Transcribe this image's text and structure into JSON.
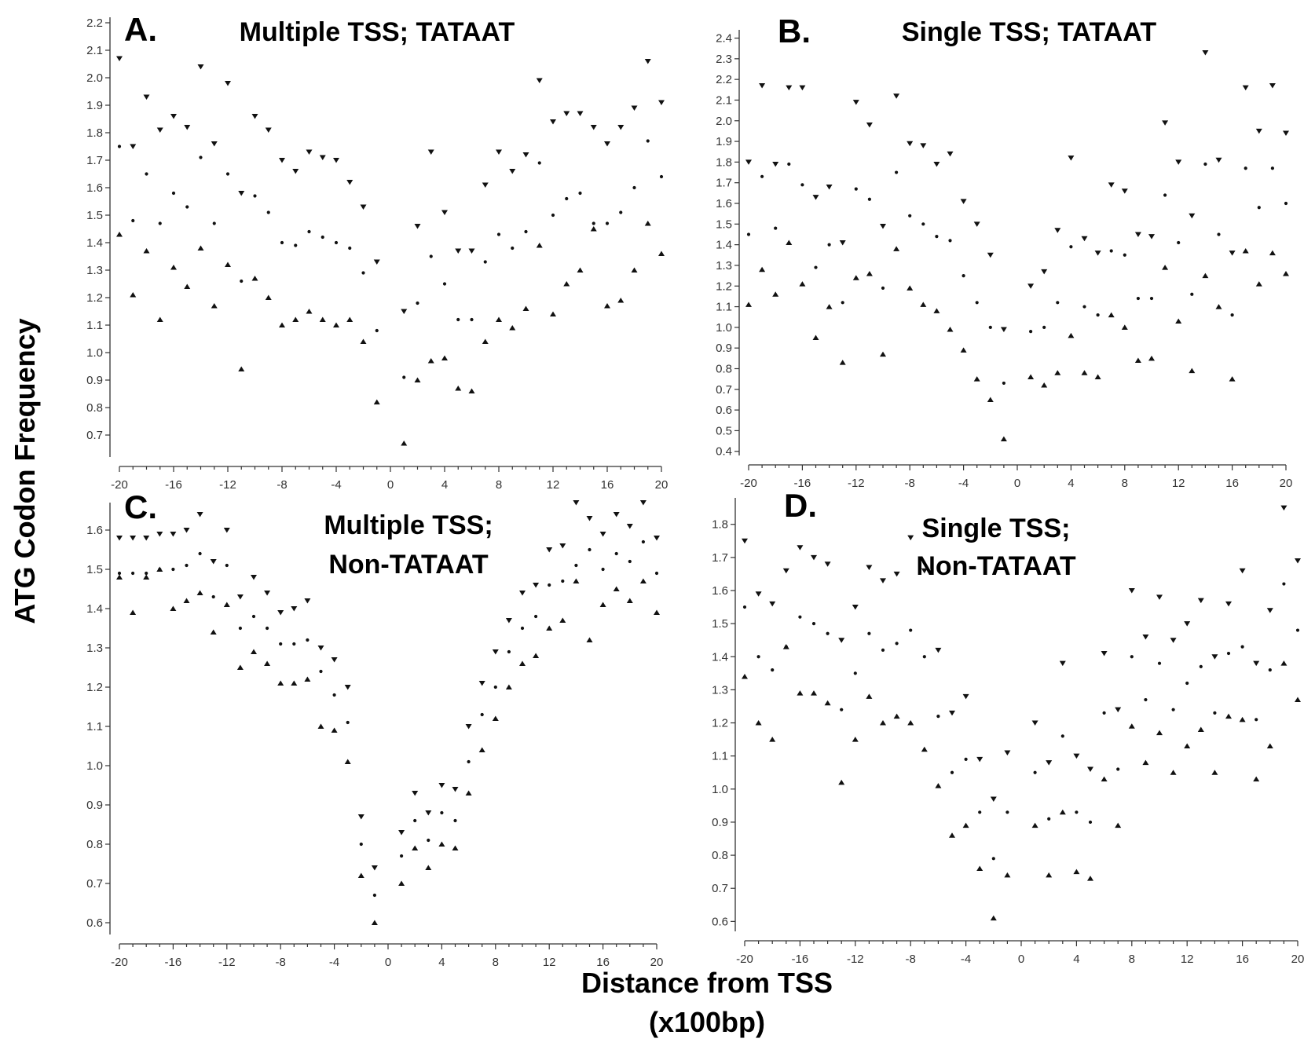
{
  "figure": {
    "ylabel": "ATG Codon Frequency",
    "xlabel_line1": "Distance from TSS",
    "xlabel_line2": "(x100bp)"
  },
  "chart_data": [
    {
      "panel": "A.",
      "title_lines": [
        "Multiple TSS; TATAAT"
      ],
      "type": "scatter",
      "xlim": [
        -20,
        20
      ],
      "ylim": [
        0.62,
        2.22
      ],
      "xticks": [
        -20,
        -16,
        -12,
        -8,
        -4,
        0,
        4,
        8,
        12,
        16,
        20
      ],
      "yticks": [
        0.7,
        0.8,
        0.9,
        1.0,
        1.1,
        1.2,
        1.3,
        1.4,
        1.5,
        1.6,
        1.7,
        1.8,
        1.9,
        2.0,
        2.1,
        2.2
      ],
      "xtick_labels": [
        "-20",
        "-16",
        "-12",
        "-8",
        "-4",
        "0",
        "4",
        "8",
        "12",
        "16",
        "20"
      ],
      "ytick_labels": [
        "0.7",
        "0.8",
        "0.9",
        "1.0",
        "1.1",
        "1.2",
        "1.3",
        "1.4",
        "1.5",
        "1.6",
        "1.7",
        "1.8",
        "1.9",
        "2.0",
        "2.1",
        "2.2"
      ],
      "x": [
        -20,
        -19,
        -18,
        -17,
        -16,
        -15,
        -14,
        -13,
        -12,
        -11,
        -10,
        -9,
        -8,
        -7,
        -6,
        -5,
        -4,
        -3,
        -2,
        -1,
        1,
        2,
        3,
        4,
        5,
        6,
        7,
        8,
        9,
        10,
        11,
        12,
        13,
        14,
        15,
        16,
        17,
        18,
        19,
        20
      ],
      "series": [
        {
          "marker": "down",
          "values": [
            2.07,
            1.75,
            1.93,
            1.81,
            1.86,
            1.82,
            2.04,
            1.76,
            1.98,
            1.58,
            1.86,
            1.81,
            1.7,
            1.66,
            1.73,
            1.71,
            1.7,
            1.62,
            1.53,
            1.33,
            1.15,
            1.46,
            1.73,
            1.51,
            1.37,
            1.37,
            1.61,
            1.73,
            1.66,
            1.72,
            1.99,
            1.84,
            1.87,
            1.87,
            1.82,
            1.76,
            1.82,
            1.89,
            2.06,
            1.91
          ]
        },
        {
          "marker": "dot",
          "values": [
            1.75,
            1.48,
            1.65,
            1.47,
            1.58,
            1.53,
            1.71,
            1.47,
            1.65,
            1.26,
            1.57,
            1.51,
            1.4,
            1.39,
            1.44,
            1.42,
            1.4,
            1.38,
            1.29,
            1.08,
            0.91,
            1.18,
            1.35,
            1.25,
            1.12,
            1.12,
            1.33,
            1.43,
            1.38,
            1.44,
            1.69,
            1.5,
            1.56,
            1.58,
            1.47,
            1.47,
            1.51,
            1.6,
            1.77,
            1.64
          ]
        },
        {
          "marker": "up",
          "values": [
            1.43,
            1.21,
            1.37,
            1.12,
            1.31,
            1.24,
            1.38,
            1.17,
            1.32,
            0.94,
            1.27,
            1.2,
            1.1,
            1.12,
            1.15,
            1.12,
            1.1,
            1.12,
            1.04,
            0.82,
            0.67,
            0.9,
            0.97,
            0.98,
            0.87,
            0.86,
            1.04,
            1.12,
            1.09,
            1.16,
            1.39,
            1.14,
            1.25,
            1.3,
            1.45,
            1.17,
            1.19,
            1.3,
            1.47,
            1.36
          ]
        }
      ]
    },
    {
      "panel": "B.",
      "title_lines": [
        "Single TSS; TATAAT"
      ],
      "type": "scatter",
      "xlim": [
        -20,
        20
      ],
      "ylim": [
        0.38,
        2.44
      ],
      "xticks": [
        -20,
        -16,
        -12,
        -8,
        -4,
        0,
        4,
        8,
        12,
        16,
        20
      ],
      "yticks": [
        0.4,
        0.5,
        0.6,
        0.7,
        0.8,
        0.9,
        1.0,
        1.1,
        1.2,
        1.3,
        1.4,
        1.5,
        1.6,
        1.7,
        1.8,
        1.9,
        2.0,
        2.1,
        2.2,
        2.3,
        2.4
      ],
      "xtick_labels": [
        "-20",
        "-16",
        "-12",
        "-8",
        "-4",
        "0",
        "4",
        "8",
        "12",
        "16",
        "20"
      ],
      "ytick_labels": [
        "0.4",
        "0.5",
        "0.6",
        "0.7",
        "0.8",
        "0.9",
        "1.0",
        "1.1",
        "1.2",
        "1.3",
        "1.4",
        "1.5",
        "1.6",
        "1.7",
        "1.8",
        "1.9",
        "2.0",
        "2.1",
        "2.2",
        "2.3",
        "2.4"
      ],
      "x": [
        -20,
        -19,
        -18,
        -17,
        -16,
        -15,
        -14,
        -13,
        -12,
        -11,
        -10,
        -9,
        -8,
        -7,
        -6,
        -5,
        -4,
        -3,
        -2,
        -1,
        1,
        2,
        3,
        4,
        5,
        6,
        7,
        8,
        9,
        10,
        11,
        12,
        13,
        14,
        15,
        16,
        17,
        18,
        19,
        20
      ],
      "series": [
        {
          "marker": "down",
          "values": [
            1.8,
            2.17,
            1.79,
            2.16,
            2.16,
            1.63,
            1.68,
            1.41,
            2.09,
            1.98,
            1.49,
            2.12,
            1.89,
            1.88,
            1.79,
            1.84,
            1.61,
            1.5,
            1.35,
            0.99,
            1.2,
            1.27,
            1.47,
            1.82,
            1.43,
            1.36,
            1.69,
            1.66,
            1.45,
            1.44,
            1.99,
            1.8,
            1.54,
            2.33,
            1.81,
            1.36,
            2.16,
            1.95,
            2.17,
            1.94
          ]
        },
        {
          "marker": "dot",
          "values": [
            1.45,
            1.73,
            1.48,
            1.79,
            1.69,
            1.29,
            1.4,
            1.12,
            1.67,
            1.62,
            1.19,
            1.75,
            1.54,
            1.5,
            1.44,
            1.42,
            1.25,
            1.12,
            1.0,
            0.73,
            0.98,
            1.0,
            1.12,
            1.39,
            1.1,
            1.06,
            1.37,
            1.35,
            1.14,
            1.14,
            1.64,
            1.41,
            1.16,
            1.79,
            1.45,
            1.06,
            1.77,
            1.58,
            1.77,
            1.6
          ]
        },
        {
          "marker": "up",
          "values": [
            1.11,
            1.28,
            1.16,
            1.41,
            1.21,
            0.95,
            1.1,
            0.83,
            1.24,
            1.26,
            0.87,
            1.38,
            1.19,
            1.11,
            1.08,
            0.99,
            0.89,
            0.75,
            0.65,
            0.46,
            0.76,
            0.72,
            0.78,
            0.96,
            0.78,
            0.76,
            1.06,
            1.0,
            0.84,
            0.85,
            1.29,
            1.03,
            0.79,
            1.25,
            1.1,
            0.75,
            1.37,
            1.21,
            1.36,
            1.26
          ]
        }
      ]
    },
    {
      "panel": "C.",
      "title_lines": [
        "Multiple TSS;",
        "Non-TATAAT"
      ],
      "type": "scatter",
      "xlim": [
        -20,
        20
      ],
      "ylim": [
        0.57,
        1.67
      ],
      "xticks": [
        -20,
        -16,
        -12,
        -8,
        -4,
        0,
        4,
        8,
        12,
        16,
        20
      ],
      "yticks": [
        0.6,
        0.7,
        0.8,
        0.9,
        1.0,
        1.1,
        1.2,
        1.3,
        1.4,
        1.5,
        1.6
      ],
      "xtick_labels": [
        "-20",
        "-16",
        "-12",
        "-8",
        "-4",
        "0",
        "4",
        "8",
        "12",
        "16",
        "20"
      ],
      "ytick_labels": [
        "0.6",
        "0.7",
        "0.8",
        "0.9",
        "1.0",
        "1.1",
        "1.2",
        "1.3",
        "1.4",
        "1.5",
        "1.6"
      ],
      "x": [
        -20,
        -19,
        -18,
        -17,
        -16,
        -15,
        -14,
        -13,
        -12,
        -11,
        -10,
        -9,
        -8,
        -7,
        -6,
        -5,
        -4,
        -3,
        -2,
        -1,
        1,
        2,
        3,
        4,
        5,
        6,
        7,
        8,
        9,
        10,
        11,
        12,
        13,
        14,
        15,
        16,
        17,
        18,
        19,
        20
      ],
      "series": [
        {
          "marker": "down",
          "values": [
            1.58,
            1.58,
            1.58,
            1.59,
            1.59,
            1.6,
            1.64,
            1.52,
            1.6,
            1.43,
            1.48,
            1.44,
            1.39,
            1.4,
            1.42,
            1.3,
            1.27,
            1.2,
            0.87,
            0.74,
            0.83,
            0.93,
            0.88,
            0.95,
            0.94,
            1.1,
            1.21,
            1.29,
            1.37,
            1.44,
            1.46,
            1.55,
            1.56,
            1.67,
            1.63,
            1.59,
            1.64,
            1.61,
            1.67,
            1.58
          ]
        },
        {
          "marker": "dot",
          "values": [
            1.49,
            1.49,
            1.49,
            1.5,
            1.5,
            1.51,
            1.54,
            1.43,
            1.51,
            1.35,
            1.38,
            1.35,
            1.31,
            1.31,
            1.32,
            1.24,
            1.18,
            1.11,
            0.8,
            0.67,
            0.77,
            0.86,
            0.81,
            0.88,
            0.86,
            1.01,
            1.13,
            1.2,
            1.29,
            1.35,
            1.38,
            1.46,
            1.47,
            1.51,
            1.55,
            1.5,
            1.54,
            1.52,
            1.57,
            1.49
          ]
        },
        {
          "marker": "up",
          "values": [
            1.48,
            1.39,
            1.48,
            1.5,
            1.4,
            1.42,
            1.44,
            1.34,
            1.41,
            1.25,
            1.29,
            1.26,
            1.21,
            1.21,
            1.22,
            1.1,
            1.09,
            1.01,
            0.72,
            0.6,
            0.7,
            0.79,
            0.74,
            0.8,
            0.79,
            0.93,
            1.04,
            1.12,
            1.2,
            1.26,
            1.28,
            1.35,
            1.37,
            1.47,
            1.32,
            1.41,
            1.45,
            1.42,
            1.47,
            1.39
          ]
        }
      ]
    },
    {
      "panel": "D.",
      "title_lines": [
        "Single TSS;",
        "Non-TATAAT"
      ],
      "type": "scatter",
      "xlim": [
        -20,
        20
      ],
      "ylim": [
        0.57,
        1.88
      ],
      "xticks": [
        -20,
        -16,
        -12,
        -8,
        -4,
        0,
        4,
        8,
        12,
        16,
        20
      ],
      "yticks": [
        0.6,
        0.7,
        0.8,
        0.9,
        1.0,
        1.1,
        1.2,
        1.3,
        1.4,
        1.5,
        1.6,
        1.7,
        1.8
      ],
      "xtick_labels": [
        "-20",
        "-16",
        "-12",
        "-8",
        "-4",
        "0",
        "4",
        "8",
        "12",
        "16",
        "20"
      ],
      "ytick_labels": [
        "0.6",
        "0.7",
        "0.8",
        "0.9",
        "1.0",
        "1.1",
        "1.2",
        "1.3",
        "1.4",
        "1.5",
        "1.6",
        "1.7",
        "1.8"
      ],
      "x": [
        -20,
        -19,
        -18,
        -17,
        -16,
        -15,
        -14,
        -13,
        -12,
        -11,
        -10,
        -9,
        -8,
        -7,
        -6,
        -5,
        -4,
        -3,
        -2,
        -1,
        1,
        2,
        3,
        4,
        5,
        6,
        7,
        8,
        9,
        10,
        11,
        12,
        13,
        14,
        15,
        16,
        17,
        18,
        19,
        20
      ],
      "series": [
        {
          "marker": "down",
          "values": [
            1.75,
            1.59,
            1.56,
            1.66,
            1.73,
            1.7,
            1.68,
            1.45,
            1.55,
            1.67,
            1.63,
            1.65,
            1.76,
            1.66,
            1.42,
            1.23,
            1.28,
            1.09,
            0.97,
            1.11,
            1.2,
            1.08,
            1.38,
            1.1,
            1.06,
            1.41,
            1.24,
            1.6,
            1.46,
            1.58,
            1.45,
            1.5,
            1.57,
            1.4,
            1.56,
            1.66,
            1.38,
            1.54,
            1.85,
            1.69
          ]
        },
        {
          "marker": "dot",
          "values": [
            1.55,
            1.4,
            1.36,
            1.43,
            1.52,
            1.5,
            1.47,
            1.24,
            1.35,
            1.47,
            1.42,
            1.44,
            1.48,
            1.4,
            1.22,
            1.05,
            1.09,
            0.93,
            0.79,
            0.93,
            1.05,
            0.91,
            1.16,
            0.93,
            0.9,
            1.23,
            1.06,
            1.4,
            1.27,
            1.38,
            1.24,
            1.32,
            1.37,
            1.23,
            1.41,
            1.43,
            1.21,
            1.36,
            1.62,
            1.48
          ]
        },
        {
          "marker": "up",
          "values": [
            1.34,
            1.2,
            1.15,
            1.43,
            1.29,
            1.29,
            1.26,
            1.02,
            1.15,
            1.28,
            1.2,
            1.22,
            1.2,
            1.12,
            1.01,
            0.86,
            0.89,
            0.76,
            0.61,
            0.74,
            0.89,
            0.74,
            0.93,
            0.75,
            0.73,
            1.03,
            0.89,
            1.19,
            1.08,
            1.17,
            1.05,
            1.13,
            1.18,
            1.05,
            1.22,
            1.21,
            1.03,
            1.13,
            1.38,
            1.27
          ]
        }
      ]
    }
  ]
}
